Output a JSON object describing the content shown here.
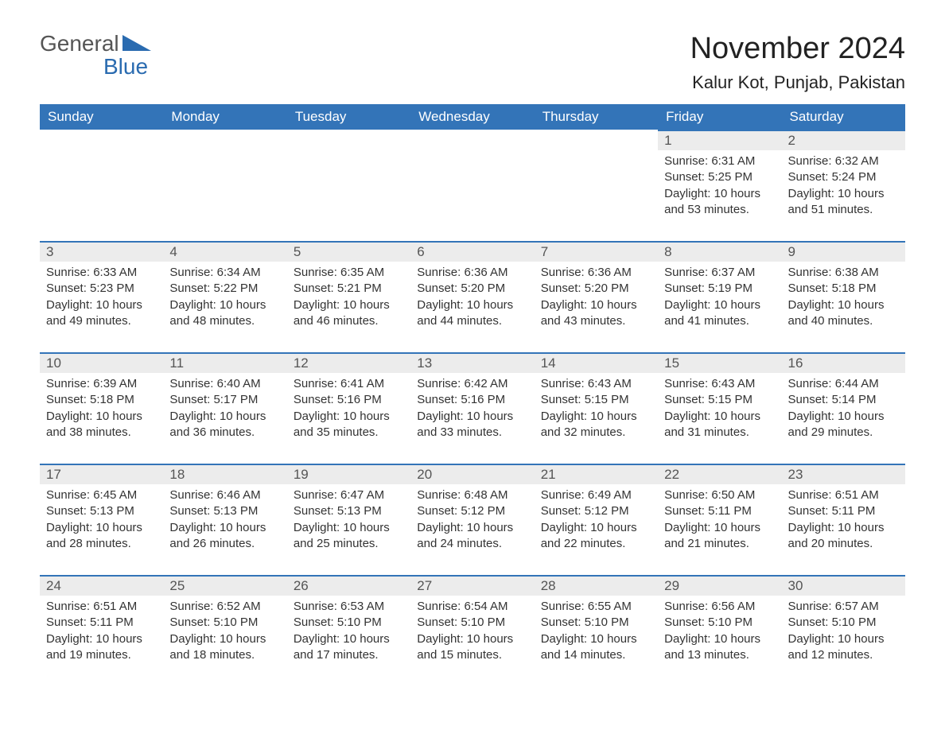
{
  "logo": {
    "part1": "General",
    "part2": "Blue"
  },
  "title": "November 2024",
  "location": "Kalur Kot, Punjab, Pakistan",
  "colors": {
    "header_bg": "#3374b8",
    "header_text": "#ffffff",
    "daynum_bg": "#ececec",
    "border": "#3374b8",
    "text": "#333333",
    "background": "#ffffff"
  },
  "font": {
    "body_size_pt": 12,
    "title_size_pt": 28,
    "location_size_pt": 17
  },
  "layout": {
    "columns": 7,
    "rows": 5,
    "first_day_column": 5
  },
  "day_headers": [
    "Sunday",
    "Monday",
    "Tuesday",
    "Wednesday",
    "Thursday",
    "Friday",
    "Saturday"
  ],
  "days": [
    {
      "day": 1,
      "sunrise": "6:31 AM",
      "sunset": "5:25 PM",
      "dl_h": 10,
      "dl_m": 53
    },
    {
      "day": 2,
      "sunrise": "6:32 AM",
      "sunset": "5:24 PM",
      "dl_h": 10,
      "dl_m": 51
    },
    {
      "day": 3,
      "sunrise": "6:33 AM",
      "sunset": "5:23 PM",
      "dl_h": 10,
      "dl_m": 49
    },
    {
      "day": 4,
      "sunrise": "6:34 AM",
      "sunset": "5:22 PM",
      "dl_h": 10,
      "dl_m": 48
    },
    {
      "day": 5,
      "sunrise": "6:35 AM",
      "sunset": "5:21 PM",
      "dl_h": 10,
      "dl_m": 46
    },
    {
      "day": 6,
      "sunrise": "6:36 AM",
      "sunset": "5:20 PM",
      "dl_h": 10,
      "dl_m": 44
    },
    {
      "day": 7,
      "sunrise": "6:36 AM",
      "sunset": "5:20 PM",
      "dl_h": 10,
      "dl_m": 43
    },
    {
      "day": 8,
      "sunrise": "6:37 AM",
      "sunset": "5:19 PM",
      "dl_h": 10,
      "dl_m": 41
    },
    {
      "day": 9,
      "sunrise": "6:38 AM",
      "sunset": "5:18 PM",
      "dl_h": 10,
      "dl_m": 40
    },
    {
      "day": 10,
      "sunrise": "6:39 AM",
      "sunset": "5:18 PM",
      "dl_h": 10,
      "dl_m": 38
    },
    {
      "day": 11,
      "sunrise": "6:40 AM",
      "sunset": "5:17 PM",
      "dl_h": 10,
      "dl_m": 36
    },
    {
      "day": 12,
      "sunrise": "6:41 AM",
      "sunset": "5:16 PM",
      "dl_h": 10,
      "dl_m": 35
    },
    {
      "day": 13,
      "sunrise": "6:42 AM",
      "sunset": "5:16 PM",
      "dl_h": 10,
      "dl_m": 33
    },
    {
      "day": 14,
      "sunrise": "6:43 AM",
      "sunset": "5:15 PM",
      "dl_h": 10,
      "dl_m": 32
    },
    {
      "day": 15,
      "sunrise": "6:43 AM",
      "sunset": "5:15 PM",
      "dl_h": 10,
      "dl_m": 31
    },
    {
      "day": 16,
      "sunrise": "6:44 AM",
      "sunset": "5:14 PM",
      "dl_h": 10,
      "dl_m": 29
    },
    {
      "day": 17,
      "sunrise": "6:45 AM",
      "sunset": "5:13 PM",
      "dl_h": 10,
      "dl_m": 28
    },
    {
      "day": 18,
      "sunrise": "6:46 AM",
      "sunset": "5:13 PM",
      "dl_h": 10,
      "dl_m": 26
    },
    {
      "day": 19,
      "sunrise": "6:47 AM",
      "sunset": "5:13 PM",
      "dl_h": 10,
      "dl_m": 25
    },
    {
      "day": 20,
      "sunrise": "6:48 AM",
      "sunset": "5:12 PM",
      "dl_h": 10,
      "dl_m": 24
    },
    {
      "day": 21,
      "sunrise": "6:49 AM",
      "sunset": "5:12 PM",
      "dl_h": 10,
      "dl_m": 22
    },
    {
      "day": 22,
      "sunrise": "6:50 AM",
      "sunset": "5:11 PM",
      "dl_h": 10,
      "dl_m": 21
    },
    {
      "day": 23,
      "sunrise": "6:51 AM",
      "sunset": "5:11 PM",
      "dl_h": 10,
      "dl_m": 20
    },
    {
      "day": 24,
      "sunrise": "6:51 AM",
      "sunset": "5:11 PM",
      "dl_h": 10,
      "dl_m": 19
    },
    {
      "day": 25,
      "sunrise": "6:52 AM",
      "sunset": "5:10 PM",
      "dl_h": 10,
      "dl_m": 18
    },
    {
      "day": 26,
      "sunrise": "6:53 AM",
      "sunset": "5:10 PM",
      "dl_h": 10,
      "dl_m": 17
    },
    {
      "day": 27,
      "sunrise": "6:54 AM",
      "sunset": "5:10 PM",
      "dl_h": 10,
      "dl_m": 15
    },
    {
      "day": 28,
      "sunrise": "6:55 AM",
      "sunset": "5:10 PM",
      "dl_h": 10,
      "dl_m": 14
    },
    {
      "day": 29,
      "sunrise": "6:56 AM",
      "sunset": "5:10 PM",
      "dl_h": 10,
      "dl_m": 13
    },
    {
      "day": 30,
      "sunrise": "6:57 AM",
      "sunset": "5:10 PM",
      "dl_h": 10,
      "dl_m": 12
    }
  ],
  "labels": {
    "sunrise_prefix": "Sunrise: ",
    "sunset_prefix": "Sunset: ",
    "daylight_prefix": "Daylight: ",
    "hours_word": " hours and ",
    "minutes_word": " minutes."
  }
}
